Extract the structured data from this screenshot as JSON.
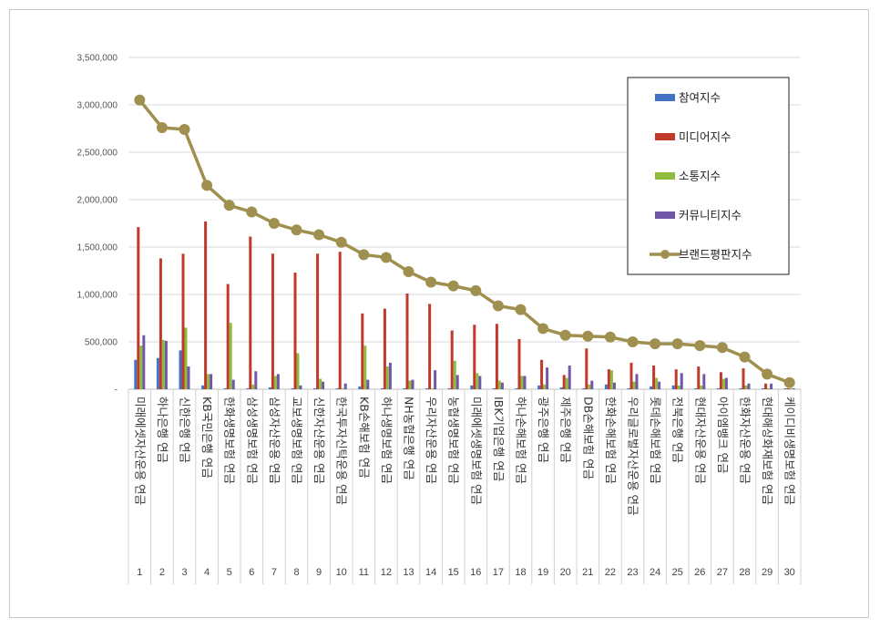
{
  "chart_data": {
    "type": "bar",
    "yticks": [
      "-",
      "500,000",
      "1,000,000",
      "1,500,000",
      "2,000,000",
      "2,500,000",
      "3,000,000",
      "3,500,000"
    ],
    "ylim": [
      0,
      3500000
    ],
    "grid": true,
    "legend_position": "top-right",
    "categories": [
      "미래에셋자산운용 연금",
      "하나은행 연금",
      "신한은행 연금",
      "KB국민은행 연금",
      "한화생명보험 연금",
      "삼성생명보험 연금",
      "삼성자산운용 연금",
      "교보생명보험 연금",
      "신한자산운용 연금",
      "한국투자신탁운용 연금",
      "KB손해보험 연금",
      "하나생명보험 연금",
      "NH농협은행 연금",
      "우리자산운용 연금",
      "농협생명보험 연금",
      "미래에셋생명보험 연금",
      "IBK기업은행 연금",
      "하나손해보험 연금",
      "광주은행 연금",
      "제주은행 연금",
      "DB손해보험 연금",
      "한화손해보험 연금",
      "우리글로벌자산운용 연금",
      "롯데손해보험 연금",
      "전북은행 연금",
      "현대자산운용 연금",
      "아이엠뱅크 연금",
      "한화자산운용 연금",
      "현대해상화재보험 연금",
      "케이디비생명보험 연금"
    ],
    "indices": [
      "1",
      "2",
      "3",
      "4",
      "5",
      "6",
      "7",
      "8",
      "9",
      "10",
      "11",
      "12",
      "13",
      "14",
      "15",
      "16",
      "17",
      "18",
      "19",
      "20",
      "21",
      "22",
      "23",
      "24",
      "25",
      "26",
      "27",
      "28",
      "29",
      "30"
    ],
    "series": [
      {
        "name": "참여지수",
        "color": "#4472c4",
        "type": "bar",
        "values": [
          310000,
          330000,
          410000,
          40000,
          10000,
          10000,
          20000,
          10000,
          10000,
          10000,
          30000,
          10000,
          10000,
          10000,
          10000,
          40000,
          10000,
          10000,
          40000,
          20000,
          10000,
          50000,
          10000,
          30000,
          40000,
          10000,
          10000,
          10000,
          10000,
          10000
        ]
      },
      {
        "name": "미디어지수",
        "color": "#c0392b",
        "type": "bar",
        "values": [
          1710000,
          1380000,
          1430000,
          1770000,
          1110000,
          1610000,
          1430000,
          1230000,
          1430000,
          1450000,
          800000,
          850000,
          1010000,
          900000,
          620000,
          680000,
          690000,
          530000,
          310000,
          150000,
          430000,
          210000,
          280000,
          250000,
          210000,
          240000,
          180000,
          220000,
          60000,
          10000
        ]
      },
      {
        "name": "소통지수",
        "color": "#8fbc3c",
        "type": "bar",
        "values": [
          460000,
          520000,
          650000,
          160000,
          700000,
          50000,
          140000,
          380000,
          110000,
          10000,
          460000,
          240000,
          90000,
          10000,
          300000,
          170000,
          90000,
          140000,
          50000,
          120000,
          50000,
          200000,
          80000,
          120000,
          40000,
          40000,
          110000,
          40000,
          10000,
          10000
        ]
      },
      {
        "name": "커뮤니티지수",
        "color": "#7057a8",
        "type": "bar",
        "values": [
          570000,
          510000,
          240000,
          160000,
          100000,
          190000,
          160000,
          40000,
          80000,
          60000,
          100000,
          280000,
          100000,
          200000,
          150000,
          140000,
          70000,
          140000,
          230000,
          250000,
          90000,
          70000,
          160000,
          80000,
          170000,
          160000,
          120000,
          60000,
          60000,
          10000
        ]
      },
      {
        "name": "브랜드평판지수",
        "color": "#a09050",
        "type": "line",
        "values": [
          3050000,
          2760000,
          2740000,
          2150000,
          1940000,
          1870000,
          1750000,
          1680000,
          1630000,
          1550000,
          1420000,
          1390000,
          1240000,
          1130000,
          1090000,
          1040000,
          880000,
          840000,
          640000,
          570000,
          560000,
          550000,
          500000,
          480000,
          480000,
          460000,
          440000,
          340000,
          160000,
          70000
        ]
      }
    ]
  }
}
